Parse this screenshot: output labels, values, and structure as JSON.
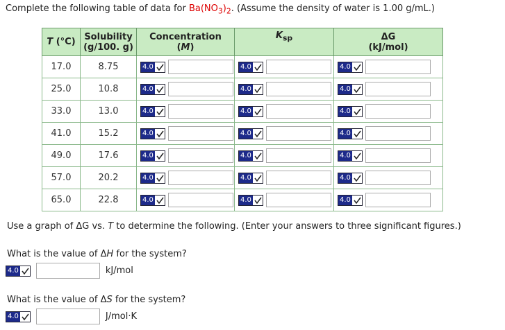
{
  "intro": {
    "before": "Complete the following table of data for ",
    "formula": [
      "Ba(NO",
      "3",
      ")",
      "2"
    ],
    "after": ". (Assume the density of water is 1.00 g/mL.)"
  },
  "badge": "4.0",
  "table": {
    "headers": {
      "t_symbol": "T",
      "t_unit": "(°C)",
      "solubility": "Solubility",
      "solubility_unit": "(g/100. g)",
      "concentration": "Concentration",
      "concentration_unit": "M",
      "ksp": "K",
      "ksp_sub": "sp",
      "dg": "ΔG",
      "dg_unit": "(kJ/mol)"
    },
    "rows": [
      [
        "17.0",
        "8.75"
      ],
      [
        "25.0",
        "10.8"
      ],
      [
        "33.0",
        "13.0"
      ],
      [
        "41.0",
        "15.2"
      ],
      [
        "49.0",
        "17.6"
      ],
      [
        "57.0",
        "20.2"
      ],
      [
        "65.0",
        "22.8"
      ]
    ]
  },
  "graph_note": {
    "before": "Use a graph of ",
    "dg": "ΔG",
    "mid": " vs. ",
    "t": "T",
    "after": " to determine the following. (Enter your answers to three significant figures.)"
  },
  "questions": [
    {
      "before": "What is the value of ",
      "delta": "Δ",
      "symbol": "H",
      "after": " for the system?",
      "unit": "kJ/mol"
    },
    {
      "before": "What is the value of ",
      "delta": "Δ",
      "symbol": "S",
      "after": " for the system?",
      "unit": "J/mol·K"
    }
  ]
}
